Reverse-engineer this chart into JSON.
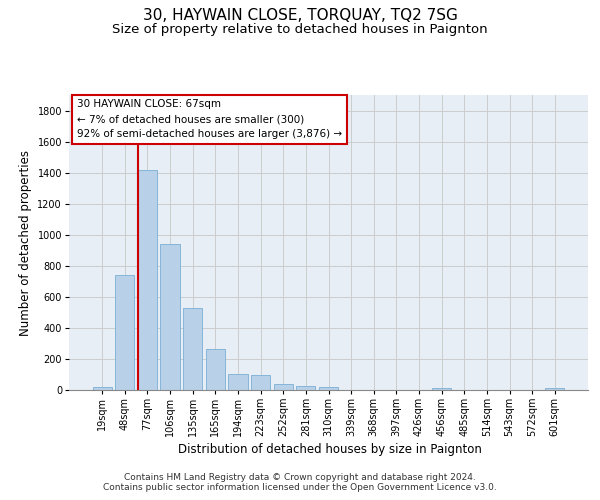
{
  "title": "30, HAYWAIN CLOSE, TORQUAY, TQ2 7SG",
  "subtitle": "Size of property relative to detached houses in Paignton",
  "xlabel": "Distribution of detached houses by size in Paignton",
  "ylabel": "Number of detached properties",
  "footer_line1": "Contains HM Land Registry data © Crown copyright and database right 2024.",
  "footer_line2": "Contains public sector information licensed under the Open Government Licence v3.0.",
  "bar_color": "#b8d0e8",
  "bar_edge_color": "#7aafd4",
  "grid_color": "#cccccc",
  "bg_color": "#e8eef5",
  "vline_color": "#cc0000",
  "categories": [
    "19sqm",
    "48sqm",
    "77sqm",
    "106sqm",
    "135sqm",
    "165sqm",
    "194sqm",
    "223sqm",
    "252sqm",
    "281sqm",
    "310sqm",
    "339sqm",
    "368sqm",
    "397sqm",
    "426sqm",
    "456sqm",
    "485sqm",
    "514sqm",
    "543sqm",
    "572sqm",
    "601sqm"
  ],
  "values": [
    22,
    740,
    1420,
    940,
    530,
    265,
    105,
    95,
    40,
    28,
    17,
    0,
    0,
    0,
    0,
    15,
    0,
    0,
    0,
    0,
    15
  ],
  "ylim": [
    0,
    1900
  ],
  "yticks": [
    0,
    200,
    400,
    600,
    800,
    1000,
    1200,
    1400,
    1600,
    1800
  ],
  "vline_x_index": 1.57,
  "annotation_line1": "30 HAYWAIN CLOSE: 67sqm",
  "annotation_line2": "← 7% of detached houses are smaller (300)",
  "annotation_line3": "92% of semi-detached houses are larger (3,876) →",
  "title_fontsize": 11,
  "subtitle_fontsize": 9.5,
  "axis_label_fontsize": 8.5,
  "tick_fontsize": 7,
  "annotation_fontsize": 7.5,
  "footer_fontsize": 6.5
}
